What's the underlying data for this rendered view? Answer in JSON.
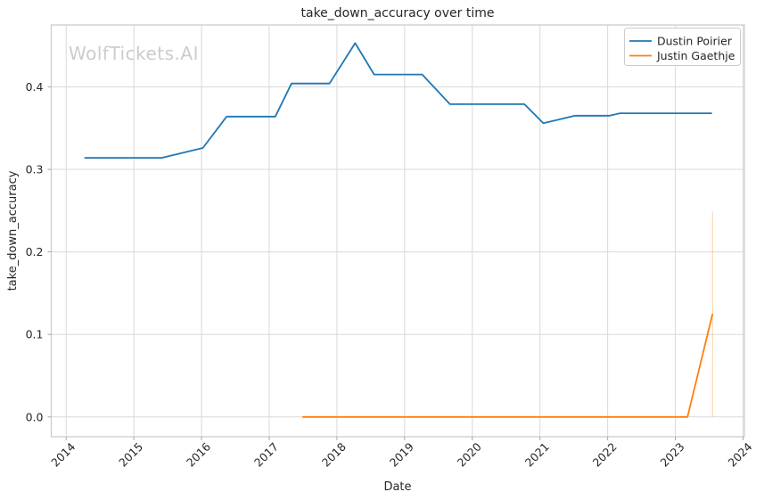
{
  "figure": {
    "title": "take_down_accuracy over time",
    "watermark": "WolfTickets.AI",
    "xlabel": "Date",
    "ylabel": "take_down_accuracy"
  },
  "legend": {
    "position": "upper right",
    "entries": [
      {
        "label": "Dustin Poirier",
        "color": "#1f77b4"
      },
      {
        "label": "Justin Gaethje",
        "color": "#ff7f0e"
      }
    ]
  },
  "style": {
    "background": "#ffffff",
    "grid_color": "#d9d9d9",
    "spine_color": "#c9c9c9",
    "tick_color": "#a6a6a6",
    "text_color": "#262626",
    "watermark_color": "#cccccc"
  },
  "chart_data": {
    "type": "line",
    "title": "take_down_accuracy over time",
    "xlabel": "Date",
    "ylabel": "take_down_accuracy",
    "grid": true,
    "legend_position": "upper right",
    "xlim": [
      2013.78,
      2024.02
    ],
    "ylim": [
      -0.024,
      0.475
    ],
    "x_ticks": [
      2014,
      2015,
      2016,
      2017,
      2018,
      2019,
      2020,
      2021,
      2022,
      2023,
      2024
    ],
    "y_ticks": [
      0.0,
      0.1,
      0.2,
      0.3,
      0.4
    ],
    "series": [
      {
        "name": "Dustin Poirier",
        "color": "#1f77b4",
        "points": [
          [
            2014.27,
            0.314
          ],
          [
            2015.41,
            0.314
          ],
          [
            2016.02,
            0.326
          ],
          [
            2016.37,
            0.364
          ],
          [
            2017.09,
            0.364
          ],
          [
            2017.33,
            0.404
          ],
          [
            2017.89,
            0.404
          ],
          [
            2018.27,
            0.453
          ],
          [
            2018.55,
            0.415
          ],
          [
            2019.26,
            0.415
          ],
          [
            2019.67,
            0.379
          ],
          [
            2020.77,
            0.379
          ],
          [
            2021.05,
            0.356
          ],
          [
            2021.52,
            0.365
          ],
          [
            2022.03,
            0.365
          ],
          [
            2022.18,
            0.368
          ],
          [
            2023.54,
            0.368
          ]
        ]
      },
      {
        "name": "Justin Gaethje",
        "color": "#ff7f0e",
        "points": [
          [
            2017.49,
            0.0
          ],
          [
            2023.18,
            0.0
          ],
          [
            2023.55,
            0.125
          ]
        ]
      }
    ],
    "annotations": [
      {
        "type": "vertical-segment",
        "x": 2023.55,
        "y0": 0.0,
        "y1": 0.249,
        "color": "#ff7f0e",
        "opacity": 0.3
      }
    ]
  }
}
